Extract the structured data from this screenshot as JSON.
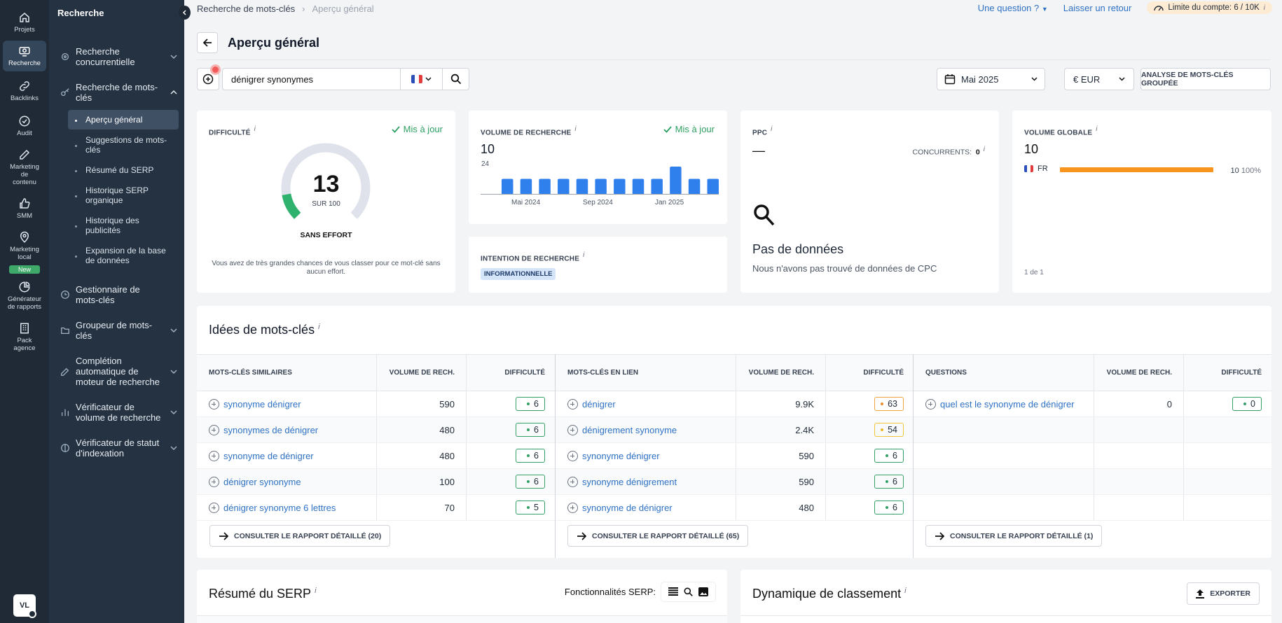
{
  "rail": {
    "items": [
      {
        "label": "Projets",
        "icon": "home-icon"
      },
      {
        "label": "Recherche",
        "icon": "research-icon"
      },
      {
        "label": "Backlinks",
        "icon": "link-icon"
      },
      {
        "label": "Audit",
        "icon": "check-circle-icon"
      },
      {
        "label": "Marketing de contenu",
        "icon": "edit-icon"
      },
      {
        "label": "SMM",
        "icon": "thumbs-up-icon"
      },
      {
        "label": "Marketing local",
        "icon": "location-pin-icon"
      },
      {
        "label": "Générateur de rapports",
        "icon": "pie-chart-icon"
      },
      {
        "label": "Pack agence",
        "icon": "building-icon"
      }
    ],
    "new_badge": "New",
    "avatar": "VL"
  },
  "sidebar": {
    "title": "Recherche",
    "items": [
      {
        "label": "Recherche concurrentielle"
      },
      {
        "label": "Recherche de mots-clés"
      },
      {
        "label": "Gestionnaire de mots-clés"
      },
      {
        "label": "Groupeur de mots-clés"
      },
      {
        "label": "Complétion automatique de moteur de recherche"
      },
      {
        "label": "Vérificateur de volume de recherche"
      },
      {
        "label": "Vérificateur de statut d'indexation"
      }
    ],
    "subitems": [
      {
        "label": "Aperçu général"
      },
      {
        "label": "Suggestions de mots-clés"
      },
      {
        "label": "Résumé du SERP"
      },
      {
        "label": "Historique SERP organique"
      },
      {
        "label": "Historique des publicités"
      },
      {
        "label": "Expansion de la base de données"
      }
    ]
  },
  "breadcrumb": {
    "parent": "Recherche de mots-clés",
    "current": "Aperçu général"
  },
  "topbar": {
    "question": "Une question ?",
    "feedback": "Laisser un retour",
    "limit": "Limite du compte: 6 / 10K",
    "limit_info": "i"
  },
  "page": {
    "title": "Aperçu général"
  },
  "search": {
    "value": "dénigrer synonymes",
    "country": "FR"
  },
  "filters": {
    "date": "Mai 2025",
    "currency": "€ EUR",
    "group_analysis": "ANALYSE DE MOTS-CLÉS GROUPÉE"
  },
  "difficulty": {
    "label": "DIFFICULTÉ",
    "info": "i",
    "status": "Mis à jour",
    "value": "13",
    "of": "SUR 100",
    "level": "SANS EFFORT",
    "description": "Vous avez de très grandes chances de vous classer pour ce mot-clé sans aucun effort."
  },
  "volume": {
    "label": "VOLUME DE RECHERCHE",
    "info": "i",
    "status": "Mis à jour",
    "value": "10",
    "axis_max": "24",
    "x_labels": [
      "Mai 2024",
      "Sep 2024",
      "Jan 2025"
    ]
  },
  "intent": {
    "label": "INTENTION DE RECHERCHE",
    "info": "i",
    "badge": "INFORMATIONNELLE"
  },
  "ppc": {
    "label": "PPC",
    "info": "i",
    "value": "—",
    "competitors_label": "CONCURRENTS:",
    "competitors": "0",
    "competitors_info": "i",
    "empty_title": "Pas de données",
    "empty_text": "Nous n'avons pas trouvé de données de CPC"
  },
  "global": {
    "label": "VOLUME GLOBALE",
    "info": "i",
    "value": "10",
    "country": "FR",
    "country_volume": "10",
    "country_pct": "100%",
    "pagination": "1 de 1"
  },
  "ideas": {
    "title": "Idées de mots-clés",
    "info": "i",
    "tables": [
      {
        "headers": [
          "MOTS-CLÉS SIMILAIRES",
          "VOLUME DE RECH.",
          "DIFFICULTÉ"
        ],
        "rows": [
          [
            "synonyme dénigrer",
            "590",
            "6"
          ],
          [
            "synonymes de dénigrer",
            "480",
            "6"
          ],
          [
            "synonyme de dénigrer",
            "480",
            "6"
          ],
          [
            "dénigrer synonyme",
            "100",
            "6"
          ],
          [
            "dénigrer synonyme 6 lettres",
            "70",
            "5"
          ]
        ],
        "button": "CONSULTER LE RAPPORT DÉTAILLÉ (20)"
      },
      {
        "headers": [
          "MOTS-CLÉS EN LIEN",
          "VOLUME DE RECH.",
          "DIFFICULTÉ"
        ],
        "rows": [
          [
            "dénigrer",
            "9.9K",
            "63"
          ],
          [
            "dénigrement synonyme",
            "2.4K",
            "54"
          ],
          [
            "synonyme dénigrer",
            "590",
            "6"
          ],
          [
            "synonyme dénigrement",
            "590",
            "6"
          ],
          [
            "synonyme de dénigrer",
            "480",
            "6"
          ]
        ],
        "button": "CONSULTER LE RAPPORT DÉTAILLÉ (65)"
      },
      {
        "headers": [
          "QUESTIONS",
          "VOLUME DE RECH.",
          "DIFFICULTÉ"
        ],
        "rows": [
          [
            "quel est le synonyme de dénigrer",
            "0",
            "0"
          ]
        ],
        "button": "CONSULTER LE RAPPORT DÉTAILLÉ (1)"
      }
    ]
  },
  "serp": {
    "title": "Résumé du SERP",
    "info": "i",
    "features_label": "Fonctionnalités SERP:"
  },
  "ranking": {
    "title": "Dynamique de classement",
    "info": "i",
    "export": "EXPORTER"
  },
  "chart_data": {
    "type": "bar",
    "categories": [
      "Mai 2024",
      "",
      "",
      "",
      "Sep 2024",
      "",
      "",
      "",
      "Jan 2025",
      "",
      "",
      ""
    ],
    "values": [
      10,
      10,
      10,
      10,
      10,
      10,
      10,
      10,
      10,
      20,
      10,
      10
    ],
    "ylim": [
      0,
      24
    ]
  },
  "colors": {
    "accent": "#2f72c4",
    "bar": "#2f80ed",
    "green": "#33a165",
    "orange": "#f7941d",
    "sidebar": "#243242",
    "rail": "#1f2a36"
  }
}
